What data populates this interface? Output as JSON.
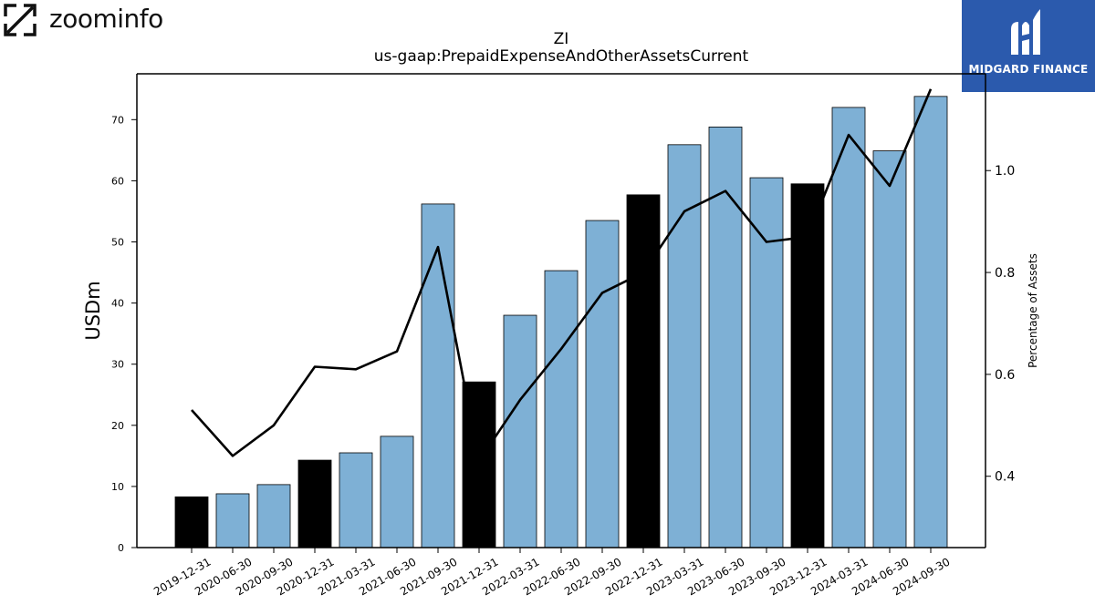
{
  "branding": {
    "left_logo_text": "zoominfo",
    "right_logo_text": "MIDGARD FINANCE",
    "right_logo_color": "#2b5aad"
  },
  "chart_data": {
    "type": "bar",
    "title": "ZI",
    "subtitle": "us-gaap:PrepaidExpenseAndOtherAssetsCurrent",
    "ylabel": "USDm",
    "y2label": "Percentage of Assets",
    "ylim": [
      0,
      77.5
    ],
    "y2lim": [
      0.26,
      1.19
    ],
    "yticks": [
      0,
      10,
      20,
      30,
      40,
      50,
      60,
      70
    ],
    "y2ticks": [
      0.4,
      0.6,
      0.8,
      1.0
    ],
    "categories": [
      "2019-12-31",
      "2020-06-30",
      "2020-09-30",
      "2020-12-31",
      "2021-03-31",
      "2021-06-30",
      "2021-09-30",
      "2021-12-31",
      "2022-03-31",
      "2022-06-30",
      "2022-09-30",
      "2022-12-31",
      "2023-03-31",
      "2023-06-30",
      "2023-09-30",
      "2023-12-31",
      "2024-03-31",
      "2024-06-30",
      "2024-09-30"
    ],
    "series": [
      {
        "type": "bar",
        "values": [
          8.3,
          8.8,
          10.3,
          14.3,
          15.5,
          18.2,
          56.2,
          27.1,
          38.0,
          45.3,
          53.5,
          57.7,
          65.9,
          68.8,
          60.5,
          59.5,
          72.0,
          64.9,
          73.8
        ]
      },
      {
        "type": "line",
        "axis": "right",
        "values": [
          0.53,
          0.44,
          0.5,
          0.615,
          0.61,
          0.645,
          0.85,
          0.43,
          0.55,
          0.65,
          0.76,
          0.8,
          0.92,
          0.96,
          0.86,
          0.87,
          1.07,
          0.97,
          1.16
        ]
      }
    ],
    "bar_colors": {
      "quarter": "#7eb0d5",
      "year_end": "#000000"
    },
    "year_end_flags": [
      true,
      false,
      false,
      true,
      false,
      false,
      false,
      true,
      false,
      false,
      false,
      true,
      false,
      false,
      false,
      true,
      false,
      false,
      false
    ],
    "line_color": "#000000",
    "grid": false,
    "legend": "none"
  }
}
